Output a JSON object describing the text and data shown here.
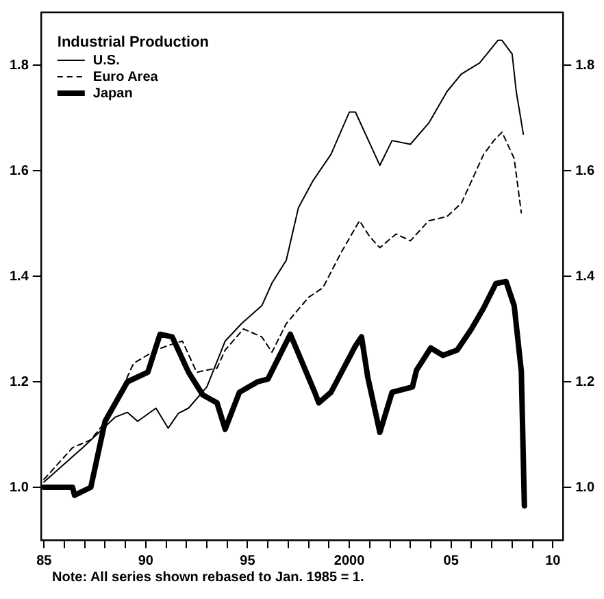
{
  "chart_data": {
    "type": "line",
    "legend_title": "Industrial Production",
    "legend": "top left",
    "grid": false,
    "marker": "none",
    "annotations": [
      "Note: All series shown rebased to Jan. 1985 = 1."
    ],
    "xlim": [
      1984.85,
      2010.5
    ],
    "xticks": [
      {
        "value": 1985,
        "label": "85"
      },
      {
        "value": 1986,
        "label": null
      },
      {
        "value": 1987,
        "label": null
      },
      {
        "value": 1988,
        "label": null
      },
      {
        "value": 1989,
        "label": null
      },
      {
        "value": 1990,
        "label": "90"
      },
      {
        "value": 1991,
        "label": null
      },
      {
        "value": 1992,
        "label": null
      },
      {
        "value": 1993,
        "label": null
      },
      {
        "value": 1994,
        "label": null
      },
      {
        "value": 1995,
        "label": "95"
      },
      {
        "value": 1996,
        "label": null
      },
      {
        "value": 1997,
        "label": null
      },
      {
        "value": 1998,
        "label": null
      },
      {
        "value": 1999,
        "label": null
      },
      {
        "value": 2000,
        "label": "2000"
      },
      {
        "value": 2001,
        "label": null
      },
      {
        "value": 2002,
        "label": null
      },
      {
        "value": 2003,
        "label": null
      },
      {
        "value": 2004,
        "label": null
      },
      {
        "value": 2005,
        "label": "05"
      },
      {
        "value": 2006,
        "label": null
      },
      {
        "value": 2007,
        "label": null
      },
      {
        "value": 2008,
        "label": null
      },
      {
        "value": 2009,
        "label": null
      },
      {
        "value": 2010,
        "label": "10"
      }
    ],
    "ylim": [
      0.9,
      1.9
    ],
    "yticks": [
      {
        "value": 1.0,
        "label": "1.0"
      },
      1.2,
      1.4,
      1.6,
      1.8
    ],
    "y2lim": [
      0.9,
      1.9
    ],
    "y2ticks": [
      {
        "value": 1.0,
        "label": "1.0"
      },
      1.2,
      1.4,
      1.6,
      1.8
    ],
    "series": [
      {
        "name": "U.S.",
        "color": "#000000",
        "line_style": "solid",
        "x": [
          1985,
          1986.9,
          1988.5,
          1989.1,
          1989.6,
          1990.5,
          1991.1,
          1991.6,
          1992.1,
          1993.0,
          1993.9,
          1994.7,
          1995.7,
          1996.2,
          1996.9,
          1997.5,
          1998.2,
          1999.1,
          2000.0,
          2000.3,
          2001.5,
          2002.1,
          2003.0,
          2003.9,
          2004.8,
          2005.5,
          2006.4,
          2007.3,
          2007.5,
          2008.0,
          2008.2,
          2008.55
        ],
        "values": [
          1.01,
          1.075,
          1.133,
          1.142,
          1.125,
          1.15,
          1.112,
          1.14,
          1.15,
          1.19,
          1.277,
          1.31,
          1.344,
          1.387,
          1.43,
          1.53,
          1.58,
          1.631,
          1.711,
          1.711,
          1.61,
          1.657,
          1.65,
          1.69,
          1.75,
          1.783,
          1.804,
          1.847,
          1.847,
          1.821,
          1.75,
          1.669
        ]
      },
      {
        "name": "Euro Area",
        "color": "#000000",
        "line_style": "dashed",
        "x": [
          1985,
          1986.4,
          1987.3,
          1988.2,
          1989.4,
          1990.5,
          1991.2,
          1991.8,
          1992.5,
          1993.5,
          1993.9,
          1994.8,
          1995.7,
          1996.2,
          1996.9,
          1998.0,
          1998.7,
          1999.6,
          2000.5,
          2001.0,
          2001.5,
          2002.3,
          2003.0,
          2003.9,
          2004.8,
          2005.5,
          2006.2,
          2006.6,
          2007.1,
          2007.5,
          2008.1,
          2008.45
        ],
        "values": [
          1.015,
          1.075,
          1.09,
          1.133,
          1.235,
          1.26,
          1.27,
          1.277,
          1.218,
          1.226,
          1.26,
          1.3,
          1.285,
          1.256,
          1.31,
          1.36,
          1.378,
          1.445,
          1.505,
          1.475,
          1.454,
          1.48,
          1.467,
          1.505,
          1.513,
          1.538,
          1.597,
          1.631,
          1.657,
          1.673,
          1.623,
          1.52
        ]
      },
      {
        "name": "Japan",
        "color": "#000000",
        "line_style": "solid",
        "x": [
          1985,
          1986.4,
          1986.5,
          1987.3,
          1988.0,
          1989.1,
          1990.1,
          1990.7,
          1991.3,
          1992.1,
          1992.8,
          1993.5,
          1993.9,
          1994.6,
          1995.5,
          1996.0,
          1997.1,
          1998.3,
          1998.5,
          1999.1,
          2000.3,
          2000.6,
          2000.9,
          2001.5,
          2002.1,
          2003.1,
          2003.3,
          2004.0,
          2004.6,
          2005.3,
          2006.0,
          2006.6,
          2007.2,
          2007.7,
          2008.1,
          2008.45,
          2008.6
        ],
        "values": [
          1.0,
          1.0,
          0.985,
          1.0,
          1.125,
          1.2,
          1.218,
          1.29,
          1.285,
          1.218,
          1.175,
          1.16,
          1.11,
          1.18,
          1.2,
          1.205,
          1.29,
          1.18,
          1.16,
          1.18,
          1.268,
          1.285,
          1.21,
          1.104,
          1.18,
          1.19,
          1.222,
          1.264,
          1.25,
          1.26,
          1.3,
          1.34,
          1.386,
          1.39,
          1.344,
          1.22,
          0.965
        ]
      }
    ]
  }
}
